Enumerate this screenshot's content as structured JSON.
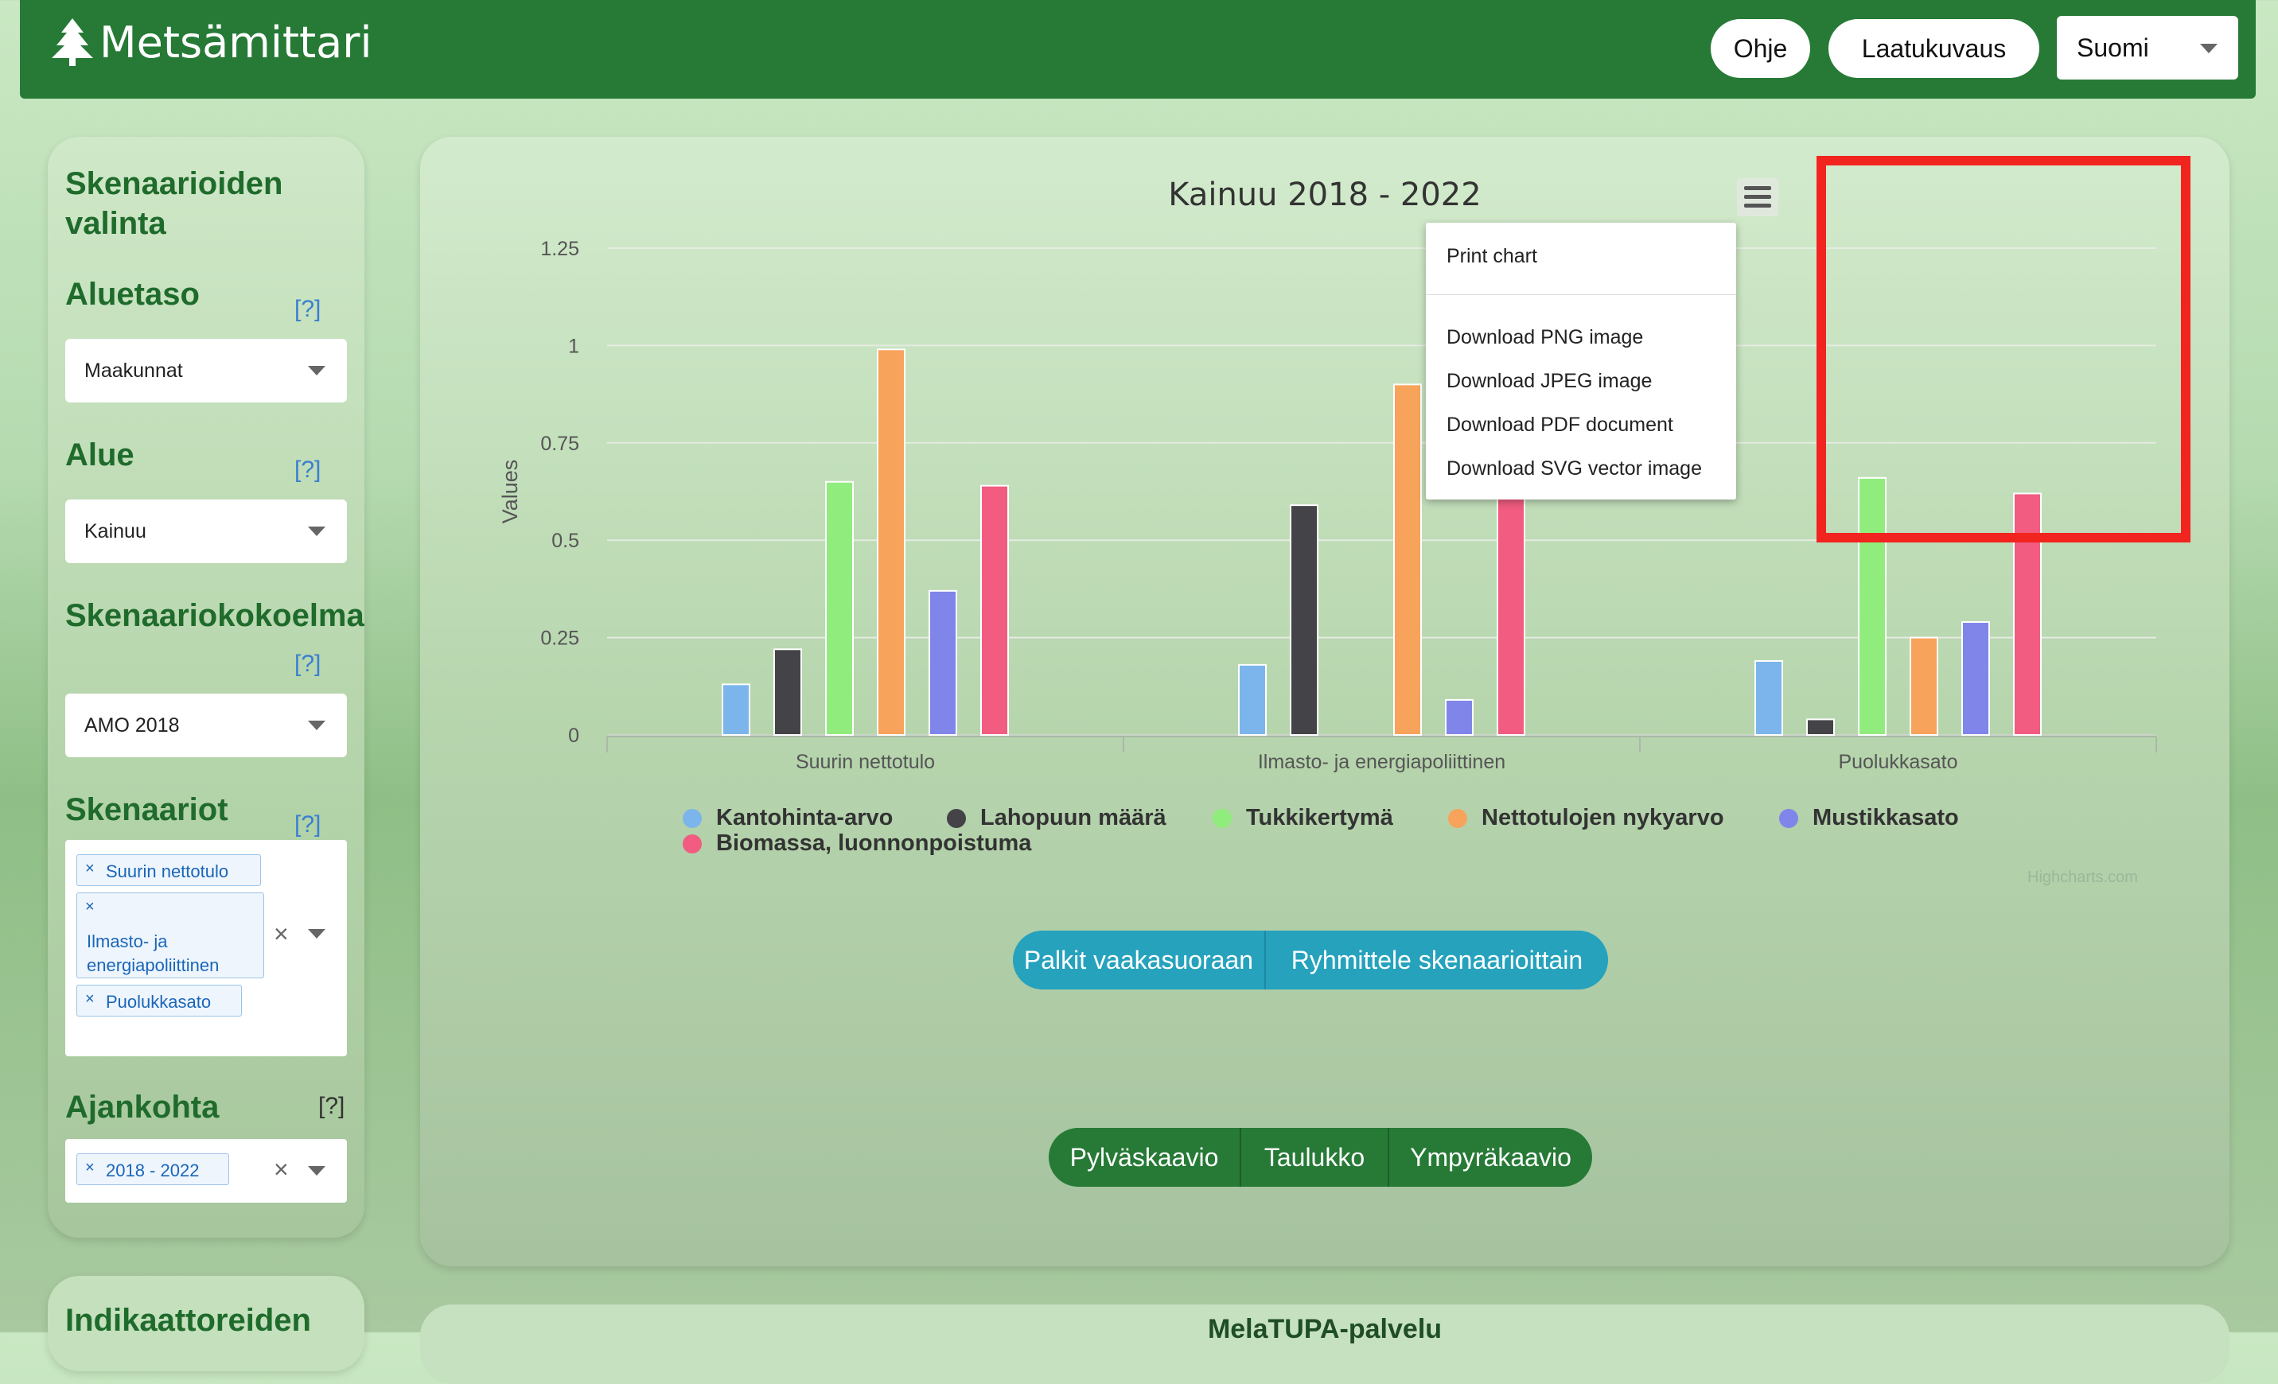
{
  "app": {
    "title": "Metsämittari"
  },
  "header": {
    "help": "Ohje",
    "quality": "Laatukuvaus",
    "language": "Suomi"
  },
  "sidebar": {
    "title": "Skenaarioiden valinta",
    "help_mark": "[?]",
    "area_level": {
      "label": "Aluetaso",
      "value": "Maakunnat"
    },
    "area": {
      "label": "Alue",
      "value": "Kainuu"
    },
    "collection": {
      "label": "Skenaariokokoelma",
      "value": "AMO 2018"
    },
    "scenarios": {
      "label": "Skenaariot",
      "selected": [
        "Suurin nettotulo",
        "Ilmasto- ja energiapoliittinen",
        "Puolukkasato"
      ]
    },
    "timepoint": {
      "label": "Ajankohta",
      "selected": [
        "2018 - 2022"
      ]
    },
    "next_title": "Indikaattoreiden"
  },
  "chart_data": {
    "type": "bar",
    "title": "Kainuu 2018 - 2022",
    "ylabel": "Values",
    "xlabel": "",
    "ylim": [
      0,
      1.25
    ],
    "yticks": [
      "0",
      "0.25",
      "0.5",
      "0.75",
      "1",
      "1.25"
    ],
    "categories": [
      "Suurin nettotulo",
      "Ilmasto- ja energiapoliittinen",
      "Puolukkasato"
    ],
    "series": [
      {
        "name": "Kantohinta-arvo",
        "color": "#7cb5ec",
        "values": [
          0.13,
          0.18,
          0.19
        ]
      },
      {
        "name": "Lahopuun määrä",
        "color": "#434348",
        "values": [
          0.22,
          0.59,
          0.04
        ]
      },
      {
        "name": "Tukkikertymä",
        "color": "#90ed7d",
        "values": [
          0.65,
          null,
          0.66
        ]
      },
      {
        "name": "Nettotulojen nykyarvo",
        "color": "#f7a35c",
        "values": [
          0.99,
          0.9,
          0.25
        ]
      },
      {
        "name": "Mustikkasato",
        "color": "#8085e9",
        "values": [
          0.37,
          0.09,
          0.29
        ]
      },
      {
        "name": "Biomassa, luonnonpoistuma",
        "color": "#f15c80",
        "values": [
          0.64,
          0.75,
          0.62
        ]
      }
    ],
    "grid": true,
    "legend": "bottom",
    "credits": "Highcharts.com"
  },
  "export_menu": {
    "print": "Print chart",
    "png": "Download PNG image",
    "jpeg": "Download JPEG image",
    "pdf": "Download PDF document",
    "svg": "Download SVG vector image"
  },
  "controls": {
    "horizontal": "Palkit vaakasuoraan",
    "group": "Ryhmittele skenaarioittain",
    "bar_chart": "Pylväskaavio",
    "table": "Taulukko",
    "pie_chart": "Ympyräkaavio"
  },
  "next_panel": {
    "title": "MelaTUPA-palvelu"
  },
  "colors": {
    "header": "#267a36",
    "accent_teal": "#26a2bd",
    "dark_green": "#267a36",
    "highlight": "#f2241f"
  }
}
